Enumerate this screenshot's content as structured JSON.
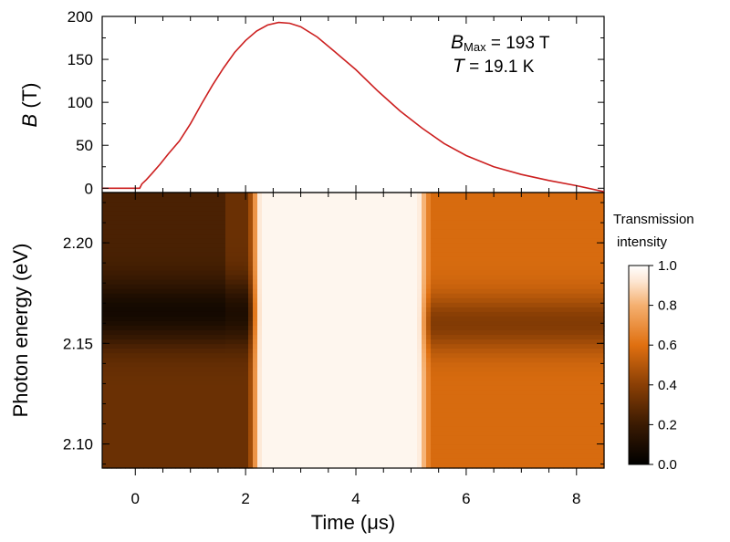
{
  "chart_data": [
    {
      "type": "line",
      "ylabel_symbol": "B",
      "ylabel_unit": " (T)",
      "xlim": [
        -0.6,
        8.5
      ],
      "ylim": [
        -5,
        200
      ],
      "yticks": [
        0,
        50,
        100,
        150,
        200
      ],
      "annotation": {
        "bmax_symbol": "B",
        "bmax_sub": "Max",
        "bmax_value": " = 193 T",
        "t_symbol": "T",
        "t_value": " = 19.1 K"
      },
      "series": [
        {
          "color": "#cc1f1f",
          "x": [
            -0.6,
            0.0,
            0.08,
            0.12,
            0.2,
            0.3,
            0.45,
            0.6,
            0.8,
            1.0,
            1.2,
            1.4,
            1.6,
            1.8,
            2.0,
            2.2,
            2.4,
            2.6,
            2.8,
            3.0,
            3.3,
            3.6,
            4.0,
            4.4,
            4.8,
            5.2,
            5.6,
            6.0,
            6.5,
            7.0,
            7.5,
            8.0,
            8.5
          ],
          "y": [
            0,
            0,
            0,
            5,
            10,
            17,
            28,
            40,
            55,
            75,
            98,
            120,
            140,
            158,
            172,
            183,
            190,
            193,
            192,
            188,
            176,
            160,
            138,
            113,
            90,
            70,
            52,
            38,
            25,
            16,
            9,
            3,
            -4
          ]
        }
      ]
    },
    {
      "type": "heatmap",
      "xlabel": "Time (μs)",
      "ylabel": "Photon energy (eV)",
      "xlim": [
        -0.6,
        8.5
      ],
      "ylim": [
        2.088,
        2.225
      ],
      "xticks": [
        0,
        2,
        4,
        6,
        8
      ],
      "yticks": [
        2.1,
        2.15,
        2.2
      ],
      "yticklabels": [
        "2.10",
        "2.15",
        "2.20"
      ],
      "colorbar": {
        "title_line1": "Transmission",
        "title_line2": "intensity",
        "range": [
          0.0,
          1.0
        ],
        "ticks": [
          0.0,
          0.2,
          0.4,
          0.6,
          0.8,
          1.0
        ],
        "ticklabels": [
          "0.0",
          "0.2",
          "0.4",
          "0.6",
          "0.8",
          "1.0"
        ],
        "colors": [
          "#000000",
          "#3a1a02",
          "#8a3f05",
          "#e07010",
          "#f5b070",
          "#fde6d2",
          "#ffffff"
        ]
      },
      "regions": [
        {
          "t_start": -0.6,
          "t_end": 2.0,
          "level": 0.32,
          "dip_center": 2.165,
          "dip_width": 0.016,
          "dip_depth": 0.22
        },
        {
          "t_start": 2.0,
          "t_end": 2.3,
          "level": 0.6,
          "note": "transition"
        },
        {
          "t_start": 2.3,
          "t_end": 5.1,
          "level": 0.97
        },
        {
          "t_start": 5.1,
          "t_end": 5.4,
          "level": 0.6,
          "note": "transition"
        },
        {
          "t_start": 5.4,
          "t_end": 8.5,
          "level": 0.58,
          "dip_center": 2.16,
          "dip_width": 0.014,
          "dip_depth": 0.2
        }
      ]
    }
  ]
}
